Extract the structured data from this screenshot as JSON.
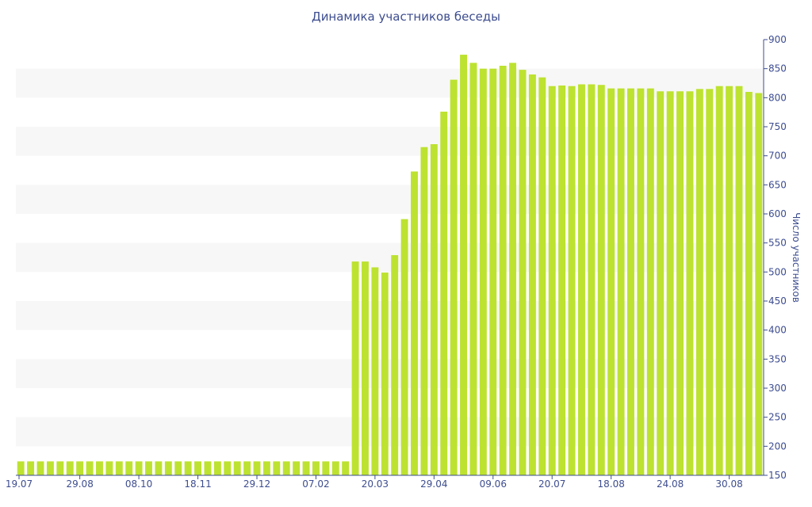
{
  "chart_data": {
    "type": "bar",
    "title": "Динамика участников беседы",
    "ylabel": "Число участников",
    "xlabel": "",
    "ylim": [
      150,
      900
    ],
    "yticks": [
      150,
      200,
      250,
      300,
      350,
      400,
      450,
      500,
      550,
      600,
      650,
      700,
      750,
      800,
      850,
      900
    ],
    "x_tick_labels": [
      {
        "index": 0,
        "label": "19.07"
      },
      {
        "index": 6,
        "label": "29.08"
      },
      {
        "index": 12,
        "label": "08.10"
      },
      {
        "index": 18,
        "label": "18.11"
      },
      {
        "index": 24,
        "label": "29.12"
      },
      {
        "index": 30,
        "label": "07.02"
      },
      {
        "index": 36,
        "label": "20.03"
      },
      {
        "index": 42,
        "label": "29.04"
      },
      {
        "index": 48,
        "label": "09.06"
      },
      {
        "index": 54,
        "label": "20.07"
      },
      {
        "index": 60,
        "label": "18.08"
      },
      {
        "index": 66,
        "label": "24.08"
      },
      {
        "index": 72,
        "label": "30.08"
      }
    ],
    "values": [
      174,
      174,
      174,
      174,
      174,
      174,
      174,
      174,
      174,
      174,
      174,
      174,
      174,
      174,
      174,
      174,
      174,
      174,
      174,
      174,
      174,
      174,
      174,
      174,
      174,
      174,
      174,
      174,
      174,
      174,
      174,
      174,
      174,
      174,
      518,
      518,
      508,
      499,
      529,
      591,
      673,
      715,
      720,
      776,
      831,
      874,
      860,
      850,
      850,
      855,
      860,
      848,
      840,
      835,
      820,
      821,
      820,
      823,
      823,
      822,
      816,
      816,
      816,
      816,
      816,
      811,
      811,
      811,
      811,
      815,
      815,
      820,
      820,
      820,
      810,
      808
    ],
    "bar_color": "#bde230",
    "grid_band_color": "#f7f7f7",
    "axis_color": "#3d4d8f"
  }
}
